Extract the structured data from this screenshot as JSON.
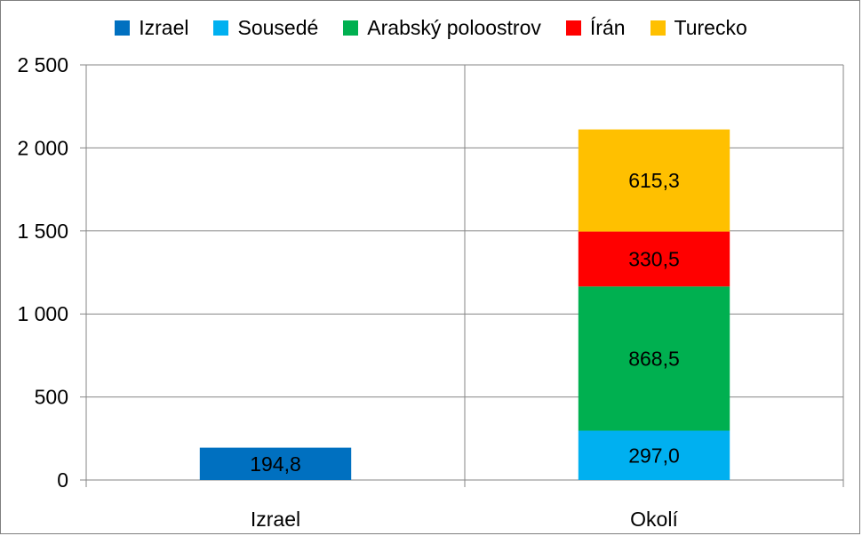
{
  "chart_data": {
    "type": "bar",
    "stacked": true,
    "categories": [
      "Izrael",
      "Okolí"
    ],
    "series": [
      {
        "name": "Izrael",
        "color": "#0070c0",
        "values": [
          194.8,
          null
        ],
        "labels": [
          "194,8",
          ""
        ]
      },
      {
        "name": "Sousedé",
        "color": "#00b0f0",
        "values": [
          null,
          297.0
        ],
        "labels": [
          "",
          "297,0"
        ]
      },
      {
        "name": "Arabský poloostrov",
        "color": "#00b050",
        "values": [
          null,
          868.5
        ],
        "labels": [
          "",
          "868,5"
        ]
      },
      {
        "name": "Írán",
        "color": "#ff0000",
        "values": [
          null,
          330.5
        ],
        "labels": [
          "",
          "330,5"
        ]
      },
      {
        "name": "Turecko",
        "color": "#ffc000",
        "values": [
          null,
          615.3
        ],
        "labels": [
          "",
          "615,3"
        ]
      }
    ],
    "yticks": [
      0,
      500,
      1000,
      1500,
      2000,
      2500
    ],
    "ytick_labels": [
      "0",
      "500",
      "1 000",
      "1 500",
      "2 000",
      "2 500"
    ],
    "ylim": [
      0,
      2500
    ],
    "grid": true,
    "legend_position": "top"
  }
}
